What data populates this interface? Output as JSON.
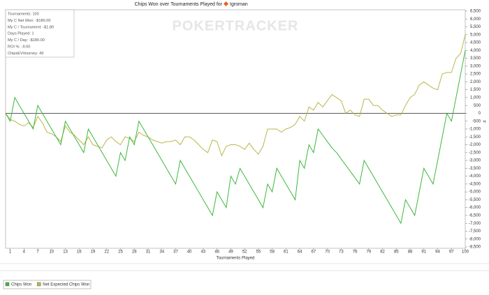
{
  "chart_data": {
    "type": "line",
    "title": "Chips Won over Tournaments Played for",
    "player": "Igroman",
    "watermark": "POKERTRACKER",
    "stats": [
      "Tournaments: 100",
      "My C Net Won: -$180.00",
      "My C / Tournament: -$1.80",
      "Days Played: 1",
      "My C / Day: -$180.00",
      "ROI %: -9.00",
      "ChipsEV/tourney: 49"
    ],
    "x_label": "Tournaments Played",
    "y_label": "#",
    "x": [
      0,
      1,
      2,
      3,
      4,
      5,
      6,
      7,
      8,
      9,
      10,
      11,
      12,
      13,
      14,
      15,
      16,
      17,
      18,
      19,
      20,
      21,
      22,
      23,
      24,
      25,
      26,
      27,
      28,
      29,
      30,
      31,
      32,
      33,
      34,
      35,
      36,
      37,
      38,
      39,
      40,
      41,
      42,
      43,
      44,
      45,
      46,
      47,
      48,
      49,
      50,
      51,
      52,
      53,
      54,
      55,
      56,
      57,
      58,
      59,
      60,
      61,
      62,
      63,
      64,
      65,
      66,
      67,
      68,
      69,
      70,
      71,
      72,
      73,
      74,
      75,
      76,
      77,
      78,
      79,
      80,
      81,
      82,
      83,
      84,
      85,
      86,
      87,
      88,
      89,
      90,
      91,
      92,
      93,
      94,
      95,
      96,
      97,
      98,
      99,
      100
    ],
    "series": [
      {
        "name": "Chips Won",
        "color": "#3cb83c",
        "values": [
          0,
          -500,
          1000,
          500,
          0,
          -500,
          -1000,
          500,
          0,
          -500,
          -1000,
          -1500,
          -2000,
          -500,
          -1000,
          -1500,
          -2000,
          -2500,
          -1000,
          -1500,
          -2000,
          -2500,
          -3000,
          -3500,
          -4000,
          -2500,
          -3000,
          -1500,
          -2000,
          -500,
          -1000,
          -1500,
          -2000,
          -2500,
          -3000,
          -3500,
          -4000,
          -4500,
          -3000,
          -3500,
          -4000,
          -4500,
          -5000,
          -5500,
          -6000,
          -6500,
          -5000,
          -5500,
          -6000,
          -4000,
          -4500,
          -3500,
          -4000,
          -4500,
          -5000,
          -5500,
          -6000,
          -4500,
          -5000,
          -3500,
          -4000,
          -4500,
          -5000,
          -5500,
          -3000,
          -3500,
          -2000,
          -2500,
          -1000,
          -1400,
          -1800,
          -2200,
          -2500,
          -2900,
          -3300,
          -3700,
          -4100,
          -4500,
          -3000,
          -3500,
          -4000,
          -4500,
          -5000,
          -5500,
          -6000,
          -6500,
          -7000,
          -5500,
          -6000,
          -6500,
          -5000,
          -3500,
          -4000,
          -4500,
          -3000,
          -1500,
          0,
          -500,
          1000,
          2500,
          4000
        ]
      },
      {
        "name": "Net Expected Chips Won",
        "color": "#b8b84a",
        "values": [
          0,
          -400,
          -500,
          -700,
          -800,
          -600,
          -900,
          -200,
          -600,
          -1200,
          -1300,
          -1500,
          -1800,
          -800,
          -1200,
          -1400,
          -1700,
          -2000,
          -1500,
          -2000,
          -2100,
          -2200,
          -1700,
          -1500,
          -1800,
          -2000,
          -1500,
          -1600,
          -1800,
          -1200,
          -1400,
          -1500,
          -1700,
          -1800,
          -1900,
          -1800,
          -1800,
          -1700,
          -2000,
          -1500,
          -1500,
          -1700,
          -2000,
          -2300,
          -2500,
          -1700,
          -1800,
          -2700,
          -2100,
          -2000,
          -2000,
          -2100,
          -2300,
          -1900,
          -2300,
          -2600,
          -2100,
          -1000,
          -1000,
          -1000,
          -1200,
          -1000,
          -900,
          -700,
          -200,
          -500,
          400,
          200,
          700,
          400,
          800,
          1200,
          1000,
          800,
          0,
          200,
          -100,
          -200,
          900,
          900,
          500,
          500,
          200,
          0,
          -200,
          -100,
          -100,
          500,
          1000,
          1200,
          1800,
          2000,
          1800,
          1600,
          1500,
          2500,
          2600,
          2600,
          3500,
          3800,
          5000
        ]
      }
    ],
    "xlim": [
      0,
      100
    ],
    "xticks": [
      1,
      4,
      7,
      10,
      13,
      16,
      19,
      22,
      25,
      28,
      31,
      34,
      37,
      40,
      43,
      46,
      49,
      52,
      55,
      58,
      61,
      64,
      67,
      70,
      73,
      76,
      79,
      82,
      85,
      88,
      91,
      94,
      97,
      100
    ],
    "ylim": [
      -8500,
      6500
    ],
    "yticks": [
      {
        "value": 6500,
        "label": "6,500"
      },
      {
        "value": 6000,
        "label": "6,000"
      },
      {
        "value": 5500,
        "label": "5,500"
      },
      {
        "value": 5000,
        "label": "5,000"
      },
      {
        "value": 4500,
        "label": "4,500"
      },
      {
        "value": 4000,
        "label": "4,000"
      },
      {
        "value": 3500,
        "label": "3,500"
      },
      {
        "value": 3000,
        "label": "3,000"
      },
      {
        "value": 2500,
        "label": "2,500"
      },
      {
        "value": 2000,
        "label": "2,000"
      },
      {
        "value": 1500,
        "label": "1,500"
      },
      {
        "value": 1000,
        "label": "1,000"
      },
      500,
      0,
      -500,
      {
        "value": -1000,
        "label": "-1,000"
      },
      {
        "value": -1500,
        "label": "-1,500"
      },
      {
        "value": -2000,
        "label": "-2,000"
      },
      {
        "value": -2500,
        "label": "-2,500"
      },
      {
        "value": -3000,
        "label": "-3,000"
      },
      {
        "value": -3500,
        "label": "-3,500"
      },
      {
        "value": -4000,
        "label": "-4,000"
      },
      {
        "value": -4500,
        "label": "-4,500"
      },
      {
        "value": -5000,
        "label": "-5,000"
      },
      {
        "value": -5500,
        "label": "-5,500"
      },
      {
        "value": -6000,
        "label": "-6,000"
      },
      {
        "value": -6500,
        "label": "-6,500"
      },
      {
        "value": -7000,
        "label": "-7,000"
      },
      {
        "value": -7500,
        "label": "-7,500"
      },
      {
        "value": -8000,
        "label": "-8,000"
      },
      {
        "value": -8500,
        "label": "-8,500"
      }
    ],
    "grid": false,
    "legend": "bottom-left"
  }
}
